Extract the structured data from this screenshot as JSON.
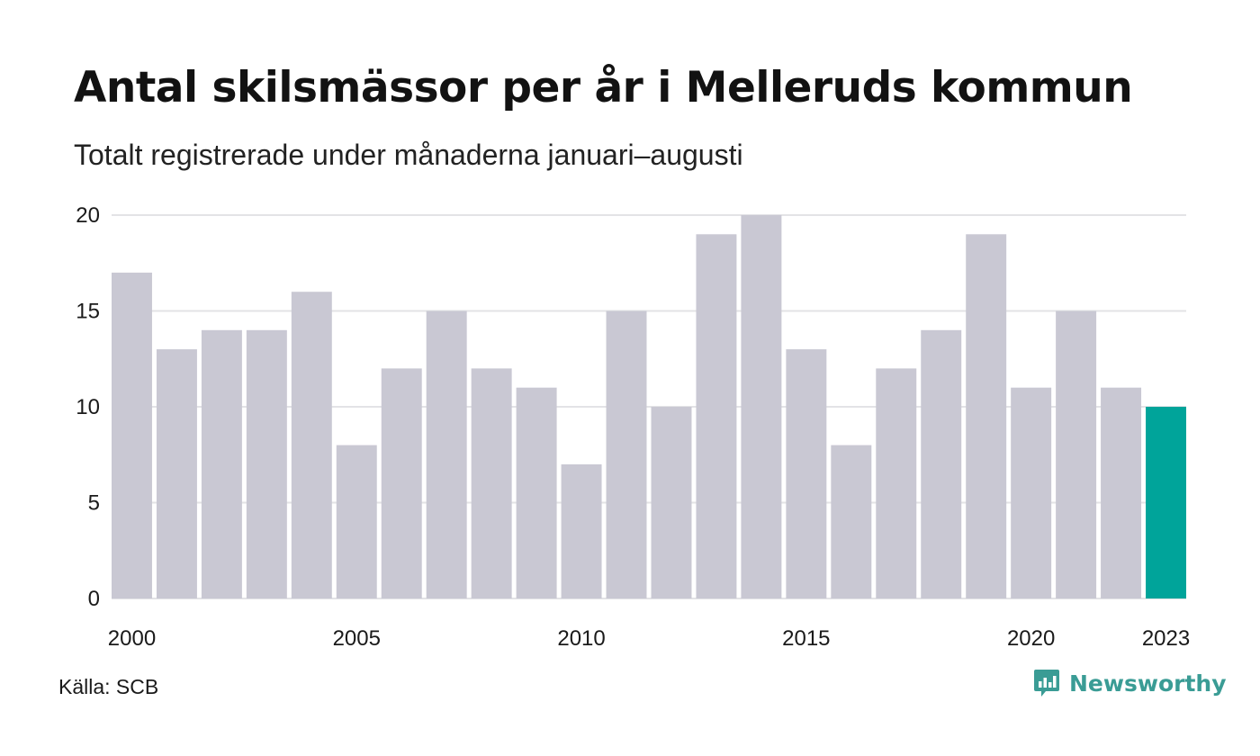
{
  "header": {
    "title": "Antal skilsmässor per år i Melleruds kommun",
    "subtitle": "Totalt registrerade under månaderna januari–augusti"
  },
  "footer": {
    "source": "Källa: SCB",
    "brand": "Newsworthy",
    "brand_icon": "newsworthy-logo-icon"
  },
  "colors": {
    "bar": "#c9c8d3",
    "highlight": "#00a49a",
    "grid": "#e3e3e6",
    "brand": "#3a9c95"
  },
  "chart_data": {
    "type": "bar",
    "categories": [
      "2000",
      "2001",
      "2002",
      "2003",
      "2004",
      "2005",
      "2006",
      "2007",
      "2008",
      "2009",
      "2010",
      "2011",
      "2012",
      "2013",
      "2014",
      "2015",
      "2016",
      "2017",
      "2018",
      "2019",
      "2020",
      "2021",
      "2022",
      "2023"
    ],
    "values": [
      17,
      13,
      14,
      14,
      16,
      8,
      12,
      15,
      12,
      11,
      7,
      15,
      10,
      19,
      20,
      13,
      8,
      12,
      14,
      19,
      11,
      15,
      11,
      10
    ],
    "highlight_category": "2023",
    "x_tick_labels": [
      "2000",
      "2005",
      "2010",
      "2015",
      "2020",
      "2023"
    ],
    "y_ticks": [
      0,
      5,
      10,
      15,
      20
    ],
    "ylim": [
      0,
      20
    ],
    "title": "Antal skilsmässor per år i Melleruds kommun",
    "xlabel": "",
    "ylabel": "",
    "grid": true,
    "legend": "none"
  }
}
